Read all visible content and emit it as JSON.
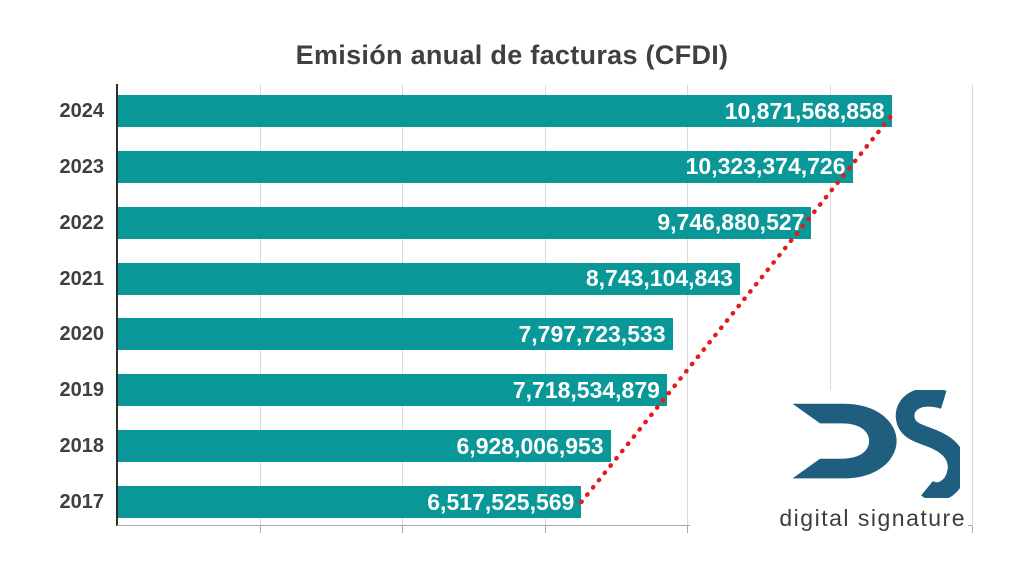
{
  "chart_data": {
    "type": "bar",
    "orientation": "horizontal",
    "title": "Emisión anual de facturas (CFDI)",
    "categories": [
      "2024",
      "2023",
      "2022",
      "2021",
      "2020",
      "2019",
      "2018",
      "2017"
    ],
    "values": [
      10871568858,
      10323374726,
      9746880527,
      8743104843,
      7797723533,
      7718534879,
      6928006953,
      6517525569
    ],
    "value_labels": [
      "10,871,568,858",
      "10,323,374,726",
      "9,746,880,527",
      "8,743,104,843",
      "7,797,723,533",
      "7,718,534,879",
      "6,928,006,953",
      "6,517,525,569"
    ],
    "xlabel": "",
    "ylabel": "",
    "xlim": [
      0,
      12000000000
    ],
    "grid_interval": 2000000000,
    "grid": "vertical light gray, no x tick labels",
    "legend": "none",
    "trendline": {
      "style": "dotted",
      "from": "end of 2017 bar",
      "to": "end of 2024 bar"
    }
  },
  "colors": {
    "bar": "#0a9798",
    "value_label": "#ffffff",
    "title": "#404040",
    "year_label": "#3f3f3f",
    "gridline": "#d9d9d9",
    "axis_bottom": "#a9a9a9",
    "axis_left": "#2e2e2e",
    "trendline": "#e21b1f",
    "logo_mark": "#1f5e7f",
    "logo_text": "#3d3d3d",
    "background": "#ffffff"
  },
  "logo": {
    "monogram": "DS",
    "text": "digital signature"
  }
}
